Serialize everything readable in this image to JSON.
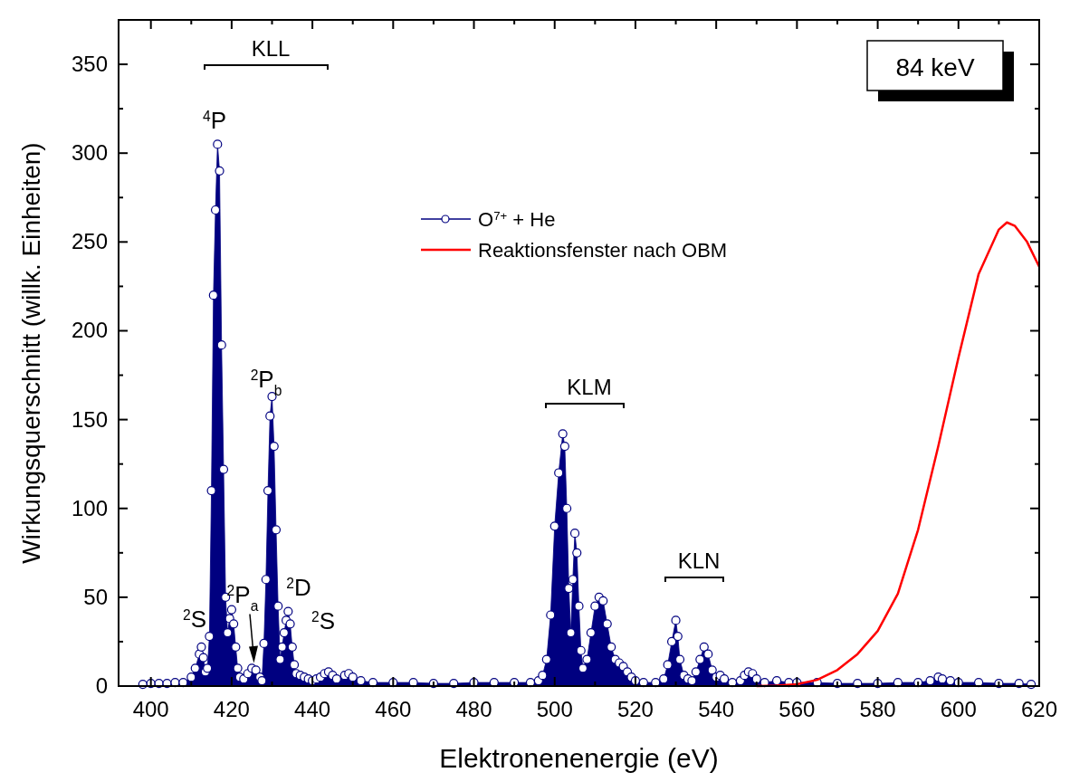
{
  "chart_data": {
    "type": "line",
    "xlabel": "Elektronenenergie (eV)",
    "ylabel": "Wirkungsquerschnitt (willk. Einheiten)",
    "xlim": [
      392,
      620
    ],
    "xticks": [
      400,
      {
        "value": 410,
        "label": null
      },
      420,
      {
        "value": 430,
        "label": null
      },
      440,
      {
        "value": 450,
        "label": null
      },
      460,
      {
        "value": 470,
        "label": null
      },
      480,
      {
        "value": 490,
        "label": null
      },
      500,
      {
        "value": 510,
        "label": null
      },
      520,
      {
        "value": 530,
        "label": null
      },
      540,
      {
        "value": 550,
        "label": null
      },
      560,
      {
        "value": 570,
        "label": null
      },
      580,
      {
        "value": 590,
        "label": null
      },
      600,
      {
        "value": 610,
        "label": null
      },
      620
    ],
    "ylim": [
      0,
      375
    ],
    "yticks": [
      0,
      {
        "value": 25,
        "label": null
      },
      50,
      {
        "value": 75,
        "label": null
      },
      100,
      {
        "value": 125,
        "label": null
      },
      150,
      {
        "value": 175,
        "label": null
      },
      200,
      {
        "value": 225,
        "label": null
      },
      250,
      {
        "value": 275,
        "label": null
      },
      300,
      {
        "value": 325,
        "label": null
      },
      350
    ],
    "legend": "top",
    "grid": false,
    "series": [
      {
        "name": "O$^{7+}$ + He",
        "type": "area",
        "marker": "circle",
        "color": "#000080",
        "x": [
          398,
          400,
          402,
          404,
          406,
          408,
          410,
          411,
          412,
          412.5,
          413,
          413.5,
          414,
          414.5,
          415,
          415.5,
          416,
          416.5,
          417,
          417.5,
          418,
          418.5,
          419,
          419.5,
          420,
          420.5,
          421,
          421.5,
          422,
          423,
          424,
          425,
          426,
          427,
          427.5,
          428,
          428.5,
          429,
          429.5,
          430,
          430.5,
          431,
          431.5,
          432,
          432.5,
          433,
          433.5,
          434,
          434.5,
          435,
          435.5,
          436,
          437,
          438,
          439,
          440,
          441,
          442,
          443,
          444,
          445,
          446,
          448,
          449,
          450,
          452,
          455,
          460,
          465,
          470,
          475,
          480,
          485,
          490,
          494,
          496,
          497,
          498,
          499,
          500,
          501,
          502,
          502.5,
          503,
          503.5,
          504,
          504.5,
          505,
          505.5,
          506,
          506.5,
          507,
          508,
          509,
          510,
          511,
          512,
          513,
          514,
          515,
          516,
          517,
          518,
          519,
          520,
          522,
          525,
          527,
          528,
          529,
          530,
          530.5,
          531,
          532,
          533,
          534,
          535,
          536,
          537,
          538,
          539,
          540,
          541,
          542,
          544,
          546,
          547,
          548,
          549,
          550,
          552,
          555,
          558,
          560,
          565,
          570,
          575,
          580,
          585,
          590,
          593,
          595,
          596,
          598,
          600,
          605,
          610,
          615,
          618
        ],
        "values": [
          1,
          1.5,
          1.5,
          1.5,
          2,
          2,
          5,
          10,
          18,
          22,
          16,
          8,
          10,
          28,
          110,
          220,
          268,
          305,
          290,
          192,
          122,
          50,
          30,
          38,
          43,
          35,
          22,
          10,
          5,
          4,
          7,
          10,
          9,
          5,
          3,
          24,
          60,
          110,
          152,
          163,
          135,
          88,
          45,
          15,
          22,
          30,
          37,
          42,
          35,
          22,
          12,
          7,
          6,
          5,
          4,
          3,
          4,
          5,
          7,
          8,
          6,
          4,
          6,
          7,
          5,
          3,
          2,
          2,
          2,
          1.5,
          1.5,
          2,
          2,
          2,
          2,
          3,
          6,
          15,
          40,
          90,
          120,
          142,
          135,
          100,
          55,
          30,
          60,
          86,
          75,
          45,
          20,
          10,
          15,
          30,
          45,
          50,
          48,
          35,
          22,
          15,
          13,
          11,
          8,
          5,
          3,
          2,
          2,
          4,
          12,
          25,
          37,
          28,
          15,
          6,
          4,
          3,
          8,
          15,
          22,
          18,
          9,
          5,
          6,
          4,
          2,
          3,
          6,
          8,
          7,
          4,
          2,
          3,
          2,
          2,
          2,
          1.5,
          1.5,
          1.5,
          2,
          2,
          3,
          5,
          4,
          3,
          2,
          2,
          1.5,
          1.5,
          1
        ]
      },
      {
        "name": "Reaktionsfenster nach OBM",
        "marker": "none",
        "color": "#ff0000",
        "x": [
          550,
          555,
          560,
          565,
          570,
          575,
          580,
          585,
          590,
          595,
          600,
          605,
          610,
          612,
          614,
          617,
          620
        ],
        "values": [
          0,
          0.3,
          1,
          3.5,
          9,
          18,
          31,
          52,
          88,
          135,
          185,
          232,
          257,
          261,
          259,
          250,
          236
        ]
      }
    ],
    "annotations": [
      "KLL",
      "KLM",
      "KLN",
      "$^{4}$P",
      "$^{2}$P$_{b}$",
      {
        "text": "$^{2}$P$_{a}$",
        "x": 425.4,
        "y": 12
      },
      "$^{2}$D",
      "$^{2}$S",
      "$^{2}$S",
      "84 keV"
    ]
  }
}
